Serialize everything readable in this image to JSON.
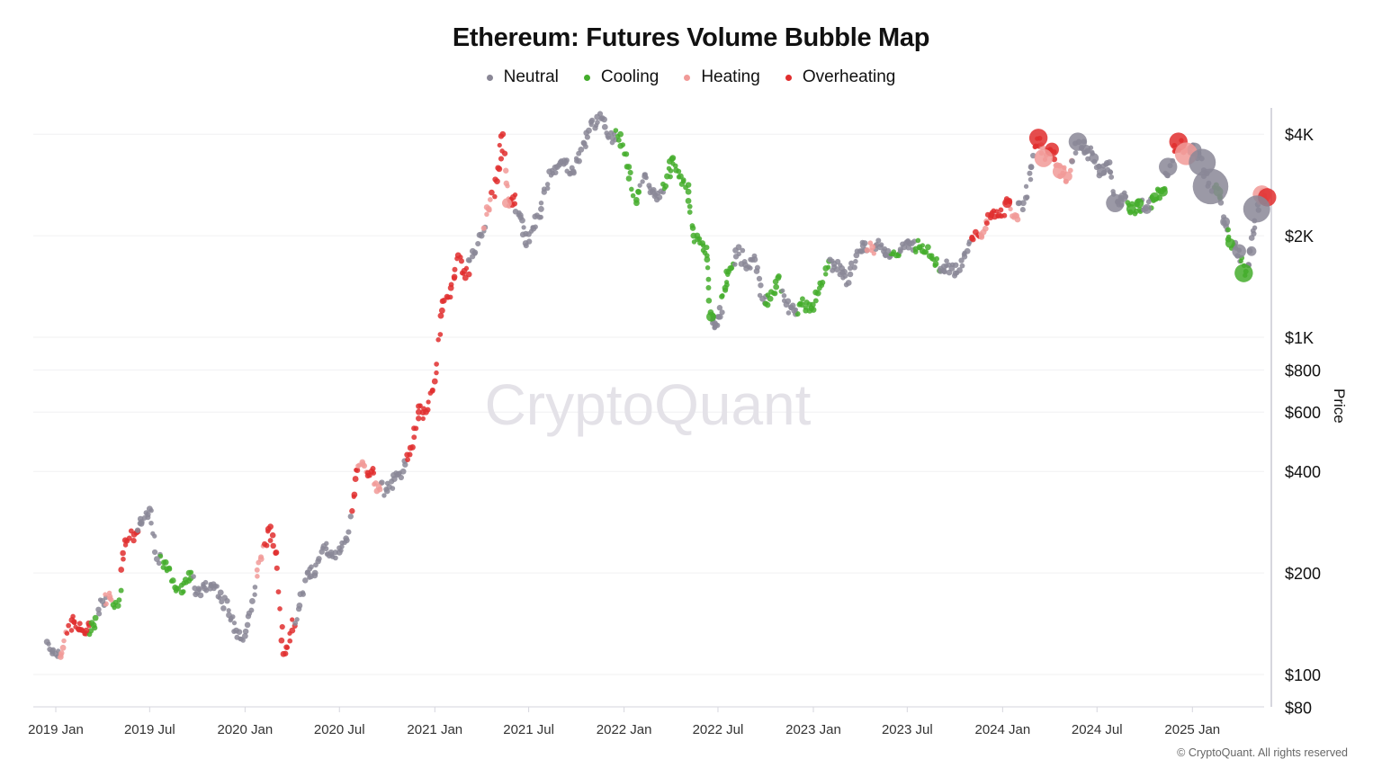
{
  "chart_data": {
    "type": "scatter",
    "title": "Ethereum: Futures Volume Bubble Map",
    "ylabel": "Price",
    "xlabel": "",
    "yscale": "log",
    "ylim": [
      80,
      4600
    ],
    "yticks": [
      {
        "v": 4000,
        "label": "$4K"
      },
      {
        "v": 2000,
        "label": "$2K"
      },
      {
        "v": 1000,
        "label": "$1K"
      },
      {
        "v": 800,
        "label": "$800"
      },
      {
        "v": 600,
        "label": "$600"
      },
      {
        "v": 400,
        "label": "$400"
      },
      {
        "v": 200,
        "label": "$200"
      },
      {
        "v": 100,
        "label": "$100"
      },
      {
        "v": 80,
        "label": "$80"
      }
    ],
    "xticks": [
      {
        "v": "2019-01-01",
        "label": "2019 Jan"
      },
      {
        "v": "2019-07-01",
        "label": "2019 Jul"
      },
      {
        "v": "2020-01-01",
        "label": "2020 Jan"
      },
      {
        "v": "2020-07-01",
        "label": "2020 Jul"
      },
      {
        "v": "2021-01-01",
        "label": "2021 Jan"
      },
      {
        "v": "2021-07-01",
        "label": "2021 Jul"
      },
      {
        "v": "2022-01-01",
        "label": "2022 Jan"
      },
      {
        "v": "2022-07-01",
        "label": "2022 Jul"
      },
      {
        "v": "2023-01-01",
        "label": "2023 Jan"
      },
      {
        "v": "2023-07-01",
        "label": "2023 Jul"
      },
      {
        "v": "2024-01-01",
        "label": "2024 Jan"
      },
      {
        "v": "2024-07-01",
        "label": "2024 Jul"
      },
      {
        "v": "2025-01-01",
        "label": "2025 Jan"
      }
    ],
    "grid": true,
    "legend_position": "top-center",
    "legend": [
      {
        "key": "N",
        "label": "Neutral",
        "color": "#8a8796"
      },
      {
        "key": "C",
        "label": "Cooling",
        "color": "#44ad2c"
      },
      {
        "key": "H",
        "label": "Heating",
        "color": "#f19a98"
      },
      {
        "key": "O",
        "label": "Overheating",
        "color": "#e02e2e"
      }
    ],
    "points_format": "[date, price_usd, state, relative_volume]",
    "points": [
      [
        "2018-12-15",
        125,
        "N",
        1
      ],
      [
        "2019-01-01",
        115,
        "N",
        1
      ],
      [
        "2019-01-15",
        120,
        "H",
        1
      ],
      [
        "2019-02-01",
        145,
        "O",
        1
      ],
      [
        "2019-02-15",
        136,
        "O",
        1
      ],
      [
        "2019-03-01",
        135,
        "O",
        1
      ],
      [
        "2019-03-15",
        140,
        "C",
        1
      ],
      [
        "2019-04-01",
        165,
        "N",
        1
      ],
      [
        "2019-04-15",
        170,
        "H",
        1
      ],
      [
        "2019-05-01",
        160,
        "C",
        1
      ],
      [
        "2019-05-15",
        250,
        "O",
        1
      ],
      [
        "2019-06-01",
        260,
        "O",
        1
      ],
      [
        "2019-06-15",
        280,
        "N",
        1
      ],
      [
        "2019-07-01",
        310,
        "N",
        1
      ],
      [
        "2019-07-15",
        220,
        "N",
        1
      ],
      [
        "2019-08-01",
        215,
        "C",
        1
      ],
      [
        "2019-08-15",
        190,
        "C",
        1
      ],
      [
        "2019-09-01",
        175,
        "C",
        1
      ],
      [
        "2019-09-15",
        200,
        "C",
        1
      ],
      [
        "2019-10-01",
        175,
        "N",
        1
      ],
      [
        "2019-10-15",
        180,
        "N",
        1
      ],
      [
        "2019-11-01",
        185,
        "N",
        1
      ],
      [
        "2019-11-15",
        175,
        "N",
        1
      ],
      [
        "2019-12-01",
        150,
        "N",
        1
      ],
      [
        "2019-12-15",
        135,
        "N",
        1
      ],
      [
        "2020-01-01",
        130,
        "N",
        1
      ],
      [
        "2020-01-15",
        165,
        "N",
        1
      ],
      [
        "2020-02-01",
        220,
        "H",
        1
      ],
      [
        "2020-02-15",
        270,
        "O",
        1
      ],
      [
        "2020-03-01",
        230,
        "O",
        1
      ],
      [
        "2020-03-15",
        115,
        "O",
        1
      ],
      [
        "2020-04-01",
        135,
        "O",
        1
      ],
      [
        "2020-04-15",
        160,
        "N",
        1
      ],
      [
        "2020-05-01",
        200,
        "N",
        1
      ],
      [
        "2020-05-15",
        200,
        "N",
        1
      ],
      [
        "2020-06-01",
        240,
        "N",
        1
      ],
      [
        "2020-06-15",
        230,
        "N",
        1
      ],
      [
        "2020-07-01",
        230,
        "N",
        1
      ],
      [
        "2020-07-15",
        250,
        "N",
        1
      ],
      [
        "2020-08-01",
        380,
        "O",
        1
      ],
      [
        "2020-08-15",
        420,
        "H",
        1
      ],
      [
        "2020-09-01",
        400,
        "O",
        1
      ],
      [
        "2020-09-15",
        360,
        "H",
        1
      ],
      [
        "2020-10-01",
        350,
        "N",
        1
      ],
      [
        "2020-10-15",
        380,
        "N",
        1
      ],
      [
        "2020-11-01",
        400,
        "N",
        1
      ],
      [
        "2020-11-15",
        470,
        "O",
        1
      ],
      [
        "2020-12-01",
        600,
        "O",
        1
      ],
      [
        "2020-12-15",
        600,
        "O",
        1
      ],
      [
        "2021-01-01",
        740,
        "O",
        1
      ],
      [
        "2021-01-15",
        1200,
        "O",
        1
      ],
      [
        "2021-02-01",
        1400,
        "O",
        1
      ],
      [
        "2021-02-15",
        1750,
        "O",
        1
      ],
      [
        "2021-03-01",
        1500,
        "O",
        1
      ],
      [
        "2021-03-15",
        1800,
        "N",
        1
      ],
      [
        "2021-04-01",
        2000,
        "N",
        1
      ],
      [
        "2021-04-15",
        2400,
        "H",
        1
      ],
      [
        "2021-05-01",
        2900,
        "O",
        1
      ],
      [
        "2021-05-12",
        4000,
        "O",
        1
      ],
      [
        "2021-05-20",
        2500,
        "H",
        2
      ],
      [
        "2021-06-01",
        2600,
        "O",
        1
      ],
      [
        "2021-06-15",
        2300,
        "N",
        1
      ],
      [
        "2021-06-25",
        1900,
        "N",
        1
      ],
      [
        "2021-07-10",
        2100,
        "N",
        1
      ],
      [
        "2021-07-25",
        2400,
        "N",
        1
      ],
      [
        "2021-08-10",
        3100,
        "N",
        1
      ],
      [
        "2021-08-25",
        3200,
        "N",
        1
      ],
      [
        "2021-09-10",
        3300,
        "N",
        1
      ],
      [
        "2021-09-25",
        3100,
        "N",
        1
      ],
      [
        "2021-10-10",
        3600,
        "N",
        1
      ],
      [
        "2021-10-25",
        4100,
        "N",
        1
      ],
      [
        "2021-11-10",
        4500,
        "N",
        1
      ],
      [
        "2021-11-25",
        4200,
        "N",
        1
      ],
      [
        "2021-12-10",
        3900,
        "N",
        1
      ],
      [
        "2021-12-25",
        4000,
        "C",
        1
      ],
      [
        "2022-01-10",
        3200,
        "C",
        1
      ],
      [
        "2022-01-25",
        2500,
        "C",
        1
      ],
      [
        "2022-02-10",
        3000,
        "N",
        1
      ],
      [
        "2022-02-25",
        2700,
        "N",
        1
      ],
      [
        "2022-03-10",
        2600,
        "N",
        1
      ],
      [
        "2022-03-25",
        3000,
        "C",
        1
      ],
      [
        "2022-04-05",
        3400,
        "C",
        1
      ],
      [
        "2022-04-20",
        3000,
        "C",
        1
      ],
      [
        "2022-05-05",
        2700,
        "C",
        1
      ],
      [
        "2022-05-15",
        2000,
        "C",
        1
      ],
      [
        "2022-06-01",
        1900,
        "C",
        1
      ],
      [
        "2022-06-10",
        1700,
        "C",
        1
      ],
      [
        "2022-06-18",
        1150,
        "C",
        2
      ],
      [
        "2022-06-25",
        1100,
        "N",
        1
      ],
      [
        "2022-07-05",
        1150,
        "N",
        1
      ],
      [
        "2022-07-15",
        1400,
        "C",
        1
      ],
      [
        "2022-07-25",
        1600,
        "C",
        1
      ],
      [
        "2022-08-10",
        1850,
        "N",
        1
      ],
      [
        "2022-08-25",
        1600,
        "N",
        1
      ],
      [
        "2022-09-10",
        1700,
        "N",
        1
      ],
      [
        "2022-09-25",
        1300,
        "N",
        1
      ],
      [
        "2022-10-10",
        1300,
        "C",
        1
      ],
      [
        "2022-10-25",
        1500,
        "C",
        1
      ],
      [
        "2022-11-10",
        1250,
        "N",
        1
      ],
      [
        "2022-11-25",
        1200,
        "N",
        1
      ],
      [
        "2022-12-10",
        1250,
        "C",
        1
      ],
      [
        "2022-12-25",
        1200,
        "C",
        1
      ],
      [
        "2023-01-10",
        1350,
        "C",
        1
      ],
      [
        "2023-01-25",
        1600,
        "C",
        1
      ],
      [
        "2023-02-10",
        1650,
        "N",
        1
      ],
      [
        "2023-02-25",
        1600,
        "N",
        1
      ],
      [
        "2023-03-10",
        1450,
        "N",
        1
      ],
      [
        "2023-03-25",
        1750,
        "N",
        1
      ],
      [
        "2023-04-10",
        1900,
        "N",
        1
      ],
      [
        "2023-04-25",
        1850,
        "H",
        1
      ],
      [
        "2023-05-10",
        1850,
        "N",
        1
      ],
      [
        "2023-05-25",
        1800,
        "N",
        1
      ],
      [
        "2023-06-10",
        1750,
        "C",
        1
      ],
      [
        "2023-06-25",
        1850,
        "N",
        1
      ],
      [
        "2023-07-10",
        1900,
        "N",
        1
      ],
      [
        "2023-07-25",
        1850,
        "C",
        1
      ],
      [
        "2023-08-10",
        1850,
        "C",
        1
      ],
      [
        "2023-08-25",
        1650,
        "C",
        1
      ],
      [
        "2023-09-10",
        1620,
        "N",
        1
      ],
      [
        "2023-09-25",
        1600,
        "N",
        1
      ],
      [
        "2023-10-10",
        1580,
        "N",
        1
      ],
      [
        "2023-10-25",
        1800,
        "N",
        1
      ],
      [
        "2023-11-10",
        2050,
        "O",
        1
      ],
      [
        "2023-11-25",
        2050,
        "H",
        1
      ],
      [
        "2023-12-10",
        2300,
        "O",
        1
      ],
      [
        "2023-12-25",
        2300,
        "O",
        1
      ],
      [
        "2024-01-10",
        2500,
        "O",
        2
      ],
      [
        "2024-01-25",
        2300,
        "H",
        1
      ],
      [
        "2024-02-10",
        2500,
        "N",
        1
      ],
      [
        "2024-02-25",
        3200,
        "N",
        1
      ],
      [
        "2024-03-10",
        3900,
        "O",
        4
      ],
      [
        "2024-03-20",
        3400,
        "H",
        4
      ],
      [
        "2024-04-05",
        3600,
        "O",
        3
      ],
      [
        "2024-04-20",
        3100,
        "H",
        3
      ],
      [
        "2024-05-05",
        3000,
        "H",
        2
      ],
      [
        "2024-05-25",
        3800,
        "N",
        4
      ],
      [
        "2024-06-10",
        3600,
        "N",
        2
      ],
      [
        "2024-06-25",
        3400,
        "N",
        2
      ],
      [
        "2024-07-10",
        3100,
        "N",
        2
      ],
      [
        "2024-07-25",
        3300,
        "N",
        1
      ],
      [
        "2024-08-05",
        2500,
        "N",
        4
      ],
      [
        "2024-08-20",
        2600,
        "N",
        2
      ],
      [
        "2024-09-05",
        2400,
        "C",
        2
      ],
      [
        "2024-09-20",
        2500,
        "C",
        2
      ],
      [
        "2024-10-05",
        2400,
        "N",
        2
      ],
      [
        "2024-10-20",
        2600,
        "C",
        2
      ],
      [
        "2024-11-05",
        2700,
        "C",
        2
      ],
      [
        "2024-11-15",
        3200,
        "N",
        4
      ],
      [
        "2024-12-05",
        3800,
        "O",
        4
      ],
      [
        "2024-12-20",
        3500,
        "H",
        5
      ],
      [
        "2025-01-05",
        3600,
        "N",
        3
      ],
      [
        "2025-01-20",
        3300,
        "N",
        6
      ],
      [
        "2025-02-05",
        2800,
        "N",
        8
      ],
      [
        "2025-02-20",
        2700,
        "C",
        2
      ],
      [
        "2025-03-05",
        2200,
        "N",
        2
      ],
      [
        "2025-03-15",
        1900,
        "C",
        2
      ],
      [
        "2025-04-01",
        1800,
        "N",
        3
      ],
      [
        "2025-04-10",
        1550,
        "C",
        4
      ],
      [
        "2025-04-25",
        1800,
        "N",
        2
      ],
      [
        "2025-05-05",
        2400,
        "N",
        6
      ],
      [
        "2025-05-15",
        2650,
        "H",
        4
      ],
      [
        "2025-05-25",
        2600,
        "O",
        4
      ]
    ]
  },
  "watermark": "CryptoQuant",
  "copyright": "© CryptoQuant. All rights reserved"
}
